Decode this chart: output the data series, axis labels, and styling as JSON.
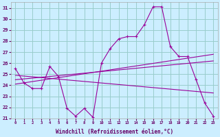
{
  "xlabel": "Windchill (Refroidissement éolien,°C)",
  "bg_color": "#cceeff",
  "line_color": "#990099",
  "grid_color": "#99cccc",
  "xlim": [
    -0.5,
    23.5
  ],
  "ylim": [
    21,
    31.5
  ],
  "yticks": [
    21,
    22,
    23,
    24,
    25,
    26,
    27,
    28,
    29,
    30,
    31
  ],
  "xticks": [
    0,
    1,
    2,
    3,
    4,
    5,
    6,
    7,
    8,
    9,
    10,
    11,
    12,
    13,
    14,
    15,
    16,
    17,
    18,
    19,
    20,
    21,
    22,
    23
  ],
  "main_x": [
    0,
    1,
    2,
    3,
    4,
    5,
    6,
    7,
    8,
    9,
    10,
    11,
    12,
    13,
    14,
    15,
    16,
    17,
    18,
    19,
    20,
    21,
    22,
    23
  ],
  "main_y": [
    25.5,
    24.2,
    23.7,
    23.7,
    25.7,
    24.8,
    21.9,
    21.2,
    21.9,
    21.1,
    26.0,
    27.3,
    28.2,
    28.4,
    28.4,
    29.5,
    31.1,
    31.1,
    27.5,
    26.6,
    26.6,
    24.5,
    22.4,
    21.2
  ],
  "line2_x": [
    0,
    23
  ],
  "line2_y": [
    24.1,
    26.8
  ],
  "line3_x": [
    0,
    23
  ],
  "line3_y": [
    24.5,
    26.2
  ],
  "line4_x": [
    0,
    23
  ],
  "line4_y": [
    24.9,
    23.3
  ]
}
